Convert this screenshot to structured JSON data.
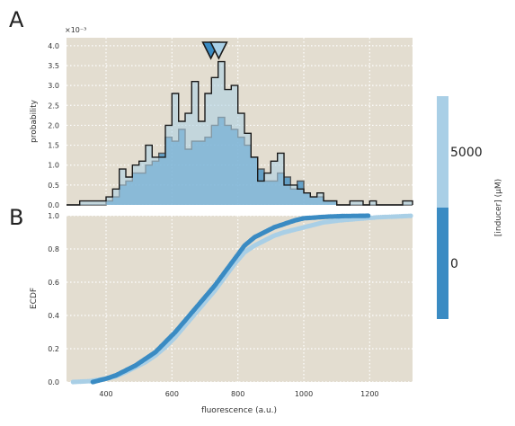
{
  "panel_a_label": "A",
  "panel_b_label": "B",
  "colorbar": {
    "label": "[inducer] (μM)",
    "ticks": [
      "5000",
      "0"
    ],
    "colors": [
      "#a9cfe6",
      "#3a8bc3"
    ]
  },
  "chart_data": [
    {
      "type": "histogram",
      "panel": "A",
      "ylabel": "probability",
      "y_multiplier": "×10⁻³",
      "ylim": [
        0,
        4.2
      ],
      "xlim": [
        280,
        1330
      ],
      "yticks": [
        "0.0",
        "0.5",
        "1.0",
        "1.5",
        "2.0",
        "2.5",
        "3.0",
        "3.5",
        "4.0"
      ],
      "bin_edges": [
        280,
        320,
        360,
        380,
        400,
        420,
        440,
        460,
        480,
        500,
        520,
        540,
        560,
        580,
        600,
        620,
        640,
        660,
        680,
        700,
        720,
        740,
        760,
        780,
        800,
        820,
        840,
        860,
        880,
        900,
        920,
        940,
        960,
        980,
        1000,
        1020,
        1040,
        1060,
        1080,
        1100,
        1120,
        1140,
        1160,
        1180,
        1200,
        1220,
        1240,
        1260,
        1280,
        1300,
        1330
      ],
      "series": [
        {
          "name": "0",
          "color": "#3a8bc3",
          "values": [
            0.0,
            0.0,
            0.0,
            0.0,
            0.1,
            0.2,
            0.5,
            0.6,
            0.8,
            0.8,
            1.0,
            1.1,
            1.3,
            1.7,
            1.6,
            1.9,
            1.4,
            1.6,
            1.6,
            1.7,
            2.0,
            2.2,
            2.0,
            1.9,
            1.7,
            1.5,
            1.2,
            0.9,
            0.6,
            0.6,
            0.8,
            0.7,
            0.4,
            0.6,
            0.3,
            0.2,
            0.2,
            0.1,
            0.1,
            0.0,
            0.0,
            0.0,
            0.0,
            0.0,
            0.0,
            0.0,
            0.0,
            0.0,
            0.0,
            0.0
          ],
          "marker_x": 718
        },
        {
          "name": "5000",
          "color": "#a9cfe6",
          "values": [
            0.0,
            0.1,
            0.1,
            0.1,
            0.2,
            0.4,
            0.9,
            0.7,
            1.0,
            1.1,
            1.5,
            1.2,
            1.2,
            2.0,
            2.8,
            2.1,
            2.3,
            3.1,
            2.1,
            2.8,
            3.2,
            3.6,
            2.9,
            3.0,
            2.3,
            1.8,
            1.2,
            0.6,
            0.8,
            1.1,
            1.3,
            0.5,
            0.5,
            0.4,
            0.3,
            0.2,
            0.3,
            0.1,
            0.1,
            0.0,
            0.0,
            0.1,
            0.1,
            0.0,
            0.1,
            0.0,
            0.0,
            0.0,
            0.0,
            0.1
          ],
          "marker_x": 742
        }
      ]
    },
    {
      "type": "scatter",
      "panel": "B",
      "xlabel": "fluorescence (a.u.)",
      "ylabel": "ECDF",
      "xlim": [
        280,
        1330
      ],
      "ylim": [
        0,
        1.0
      ],
      "xticks": [
        "400",
        "600",
        "800",
        "1000",
        "1200"
      ],
      "yticks": [
        "0.0",
        "0.2",
        "0.4",
        "0.6",
        "0.8",
        "1.0"
      ],
      "series": [
        {
          "name": "0",
          "color": "#3a8bc3",
          "x": [
            360,
            400,
            430,
            460,
            490,
            520,
            550,
            580,
            610,
            640,
            670,
            700,
            730,
            760,
            790,
            820,
            850,
            880,
            910,
            940,
            970,
            1000,
            1040,
            1080,
            1120,
            1160,
            1200
          ],
          "y": [
            0.0,
            0.02,
            0.04,
            0.07,
            0.1,
            0.14,
            0.18,
            0.24,
            0.3,
            0.37,
            0.44,
            0.51,
            0.58,
            0.66,
            0.74,
            0.82,
            0.87,
            0.9,
            0.93,
            0.95,
            0.97,
            0.985,
            0.99,
            0.995,
            0.998,
            0.999,
            1.0
          ]
        },
        {
          "name": "5000",
          "color": "#a9cfe6",
          "x": [
            300,
            350,
            400,
            430,
            460,
            490,
            520,
            550,
            580,
            610,
            640,
            670,
            700,
            730,
            760,
            790,
            820,
            850,
            880,
            910,
            940,
            980,
            1020,
            1060,
            1100,
            1160,
            1220,
            1280,
            1330
          ],
          "y": [
            0.0,
            0.005,
            0.02,
            0.035,
            0.06,
            0.09,
            0.12,
            0.16,
            0.21,
            0.27,
            0.34,
            0.41,
            0.48,
            0.55,
            0.63,
            0.71,
            0.78,
            0.82,
            0.85,
            0.88,
            0.9,
            0.92,
            0.94,
            0.96,
            0.97,
            0.98,
            0.99,
            0.995,
            1.0
          ]
        }
      ]
    }
  ]
}
